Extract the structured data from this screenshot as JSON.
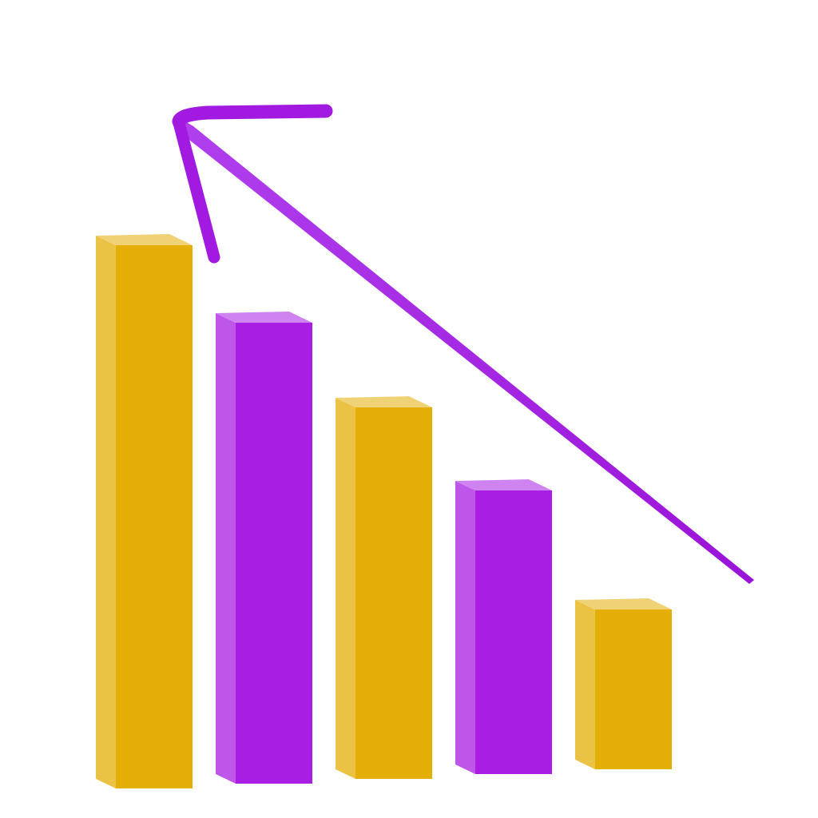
{
  "chart_data": {
    "type": "bar3d",
    "categories": [
      null,
      null,
      null,
      null,
      null
    ],
    "values": [
      680,
      577,
      465,
      355,
      200
    ],
    "colors": [
      "#e3ae06",
      "#a81ee3",
      "#e3ae06",
      "#a81ee3",
      "#e3ae06"
    ],
    "ylim": [
      0,
      700
    ]
  }
}
